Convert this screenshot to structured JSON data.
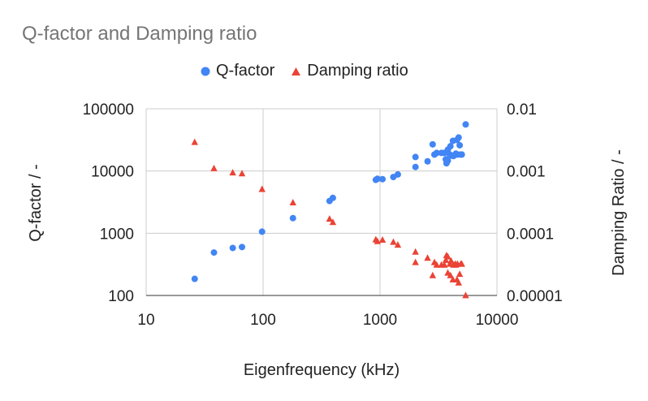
{
  "chart_data": {
    "type": "scatter",
    "title": "Q-factor and Damping ratio",
    "xlabel": "Eigenfrequency (kHz)",
    "ylabel": "Q-factor / -",
    "y2label": "Damping Ratio / -",
    "xscale": "log",
    "yscale": "log",
    "y2scale": "log",
    "xlim": [
      10,
      10000
    ],
    "ylim": [
      100,
      100000
    ],
    "y2lim": [
      1e-05,
      0.01
    ],
    "xticks": [
      "10",
      "100",
      "1000",
      "10000"
    ],
    "yticks": [
      "100",
      "1000",
      "10000",
      "100000"
    ],
    "y2ticks": [
      "0.00001",
      "0.0001",
      "0.001",
      "0.01"
    ],
    "grid": true,
    "legend_position": "top",
    "series": [
      {
        "name": "Q-factor",
        "axis": "left",
        "marker": "circle",
        "color": "#4285F4",
        "points": [
          [
            26,
            185
          ],
          [
            38,
            490
          ],
          [
            55,
            580
          ],
          [
            66,
            600
          ],
          [
            98,
            1060
          ],
          [
            180,
            1750
          ],
          [
            370,
            3300
          ],
          [
            395,
            3700
          ],
          [
            920,
            7200
          ],
          [
            950,
            7500
          ],
          [
            1050,
            7400
          ],
          [
            1300,
            8000
          ],
          [
            1420,
            8800
          ],
          [
            2010,
            11600
          ],
          [
            2010,
            16800
          ],
          [
            2550,
            14300
          ],
          [
            2820,
            26800
          ],
          [
            2920,
            18400
          ],
          [
            3050,
            19500
          ],
          [
            3350,
            19500
          ],
          [
            3550,
            19500
          ],
          [
            3650,
            15400
          ],
          [
            3700,
            13300
          ],
          [
            3800,
            14600
          ],
          [
            3800,
            22000
          ],
          [
            3950,
            18400
          ],
          [
            4000,
            25000
          ],
          [
            4050,
            17600
          ],
          [
            4200,
            30500
          ],
          [
            4250,
            17400
          ],
          [
            4400,
            18400
          ],
          [
            4450,
            19000
          ],
          [
            4550,
            31500
          ],
          [
            4600,
            18400
          ],
          [
            4700,
            34500
          ],
          [
            4800,
            25900
          ],
          [
            4900,
            18400
          ],
          [
            5000,
            18400
          ],
          [
            5400,
            56000
          ]
        ]
      },
      {
        "name": "Damping ratio",
        "axis": "right",
        "marker": "triangle",
        "color": "#EA4335",
        "points": [
          [
            26,
            0.0029
          ],
          [
            38,
            0.0011
          ],
          [
            55,
            0.00094
          ],
          [
            66,
            0.00091
          ],
          [
            98,
            0.00051
          ],
          [
            180,
            0.00031
          ],
          [
            370,
            0.00017
          ],
          [
            395,
            0.00015
          ],
          [
            920,
            7.9e-05
          ],
          [
            950,
            7.4e-05
          ],
          [
            1050,
            7.8e-05
          ],
          [
            1300,
            7.2e-05
          ],
          [
            1420,
            6.5e-05
          ],
          [
            2010,
            5e-05
          ],
          [
            2010,
            3.4e-05
          ],
          [
            2550,
            4e-05
          ],
          [
            2820,
            2.1e-05
          ],
          [
            2920,
            3.4e-05
          ],
          [
            3050,
            3.1e-05
          ],
          [
            3350,
            3.1e-05
          ],
          [
            3550,
            3.1e-05
          ],
          [
            3650,
            3.7e-05
          ],
          [
            3700,
            4.4e-05
          ],
          [
            3800,
            4.2e-05
          ],
          [
            3800,
            2.3e-05
          ],
          [
            3950,
            3.2e-05
          ],
          [
            4000,
            2.1e-05
          ],
          [
            4050,
            3.6e-05
          ],
          [
            4200,
            1.8e-05
          ],
          [
            4250,
            3.1e-05
          ],
          [
            4400,
            3.2e-05
          ],
          [
            4450,
            3.1e-05
          ],
          [
            4550,
            1.8e-05
          ],
          [
            4600,
            3.2e-05
          ],
          [
            4700,
            1.6e-05
          ],
          [
            4800,
            2.2e-05
          ],
          [
            4900,
            3.2e-05
          ],
          [
            5000,
            3.2e-05
          ],
          [
            5400,
            1e-05
          ]
        ]
      }
    ]
  }
}
